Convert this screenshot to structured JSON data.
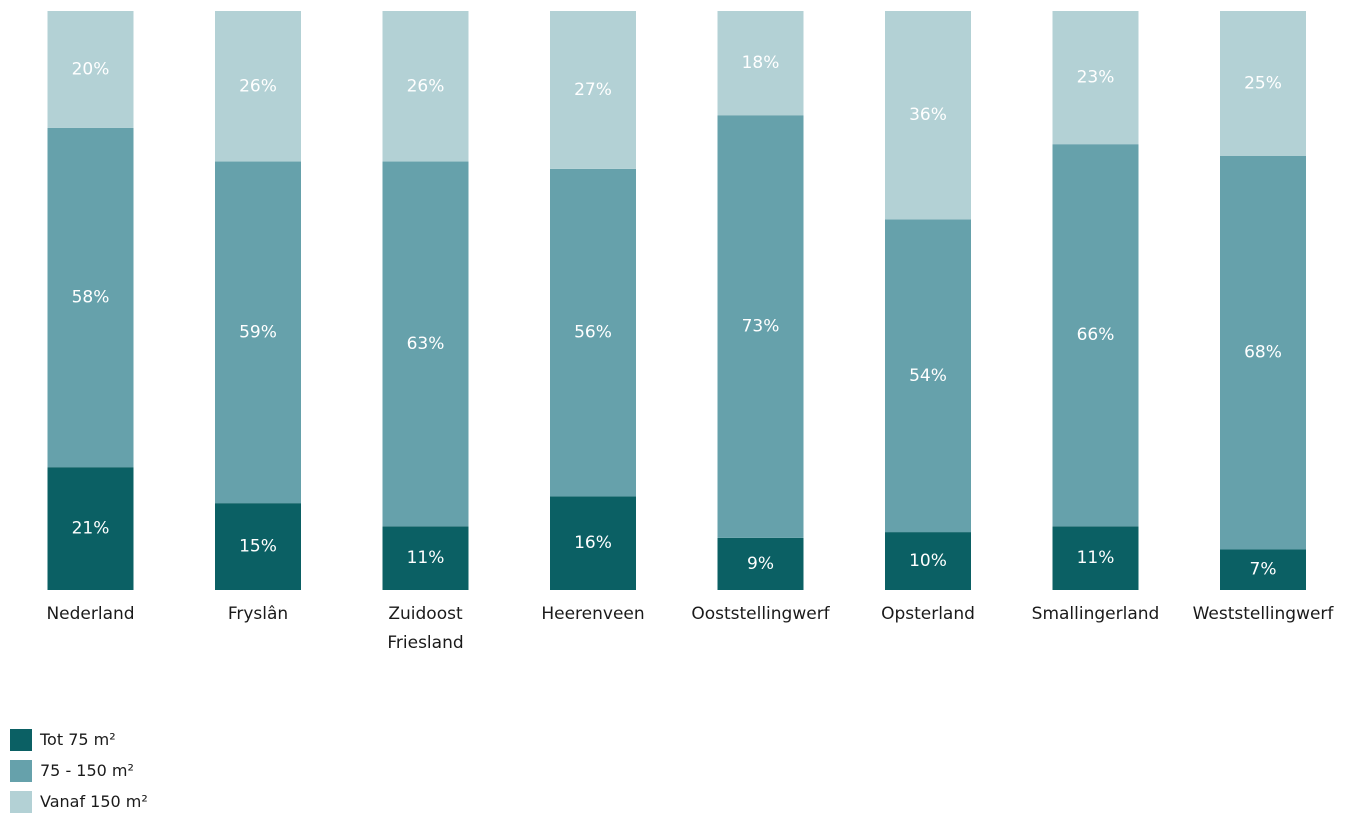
{
  "chart_data": {
    "type": "bar",
    "stacked": true,
    "normalized": true,
    "categories": [
      [
        "Nederland"
      ],
      [
        "Fryslân"
      ],
      [
        "Zuidoost",
        "Friesland"
      ],
      [
        "Heerenveen"
      ],
      [
        "Ooststellingwerf"
      ],
      [
        "Opsterland"
      ],
      [
        "Smallingerland"
      ],
      [
        "Weststellingwerf"
      ]
    ],
    "series": [
      {
        "name": "Tot 75 m²",
        "color": "#0b6064",
        "values": [
          21,
          15,
          11,
          16,
          9,
          10,
          11,
          7
        ]
      },
      {
        "name": "75 - 150 m²",
        "color": "#66a1ab",
        "values": [
          58,
          59,
          63,
          56,
          73,
          54,
          66,
          68
        ]
      },
      {
        "name": "Vanaf 150 m²",
        "color": "#b3d1d5",
        "values": [
          20,
          26,
          26,
          27,
          18,
          36,
          23,
          25
        ]
      }
    ],
    "value_suffix": "%",
    "legend_position": "bottom-left",
    "grid": false
  }
}
